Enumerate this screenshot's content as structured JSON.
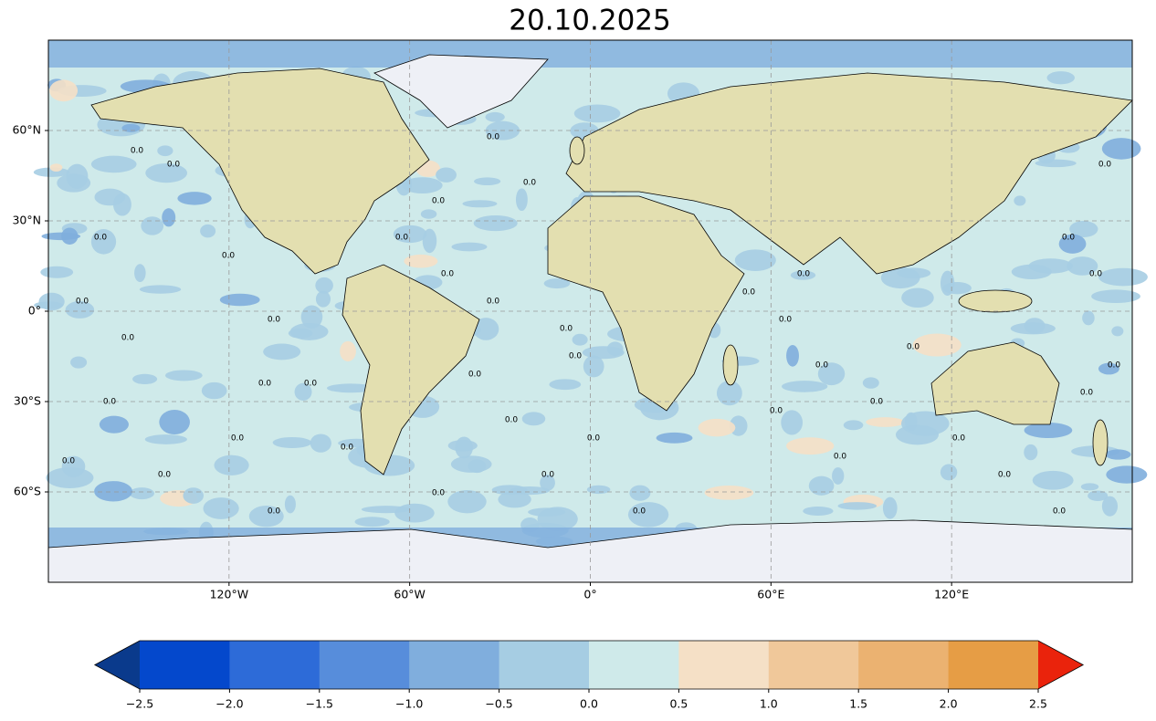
{
  "chart_data": {
    "type": "map",
    "title": "20.10.2025",
    "xlim": [
      -180,
      180
    ],
    "ylim": [
      -90,
      90
    ],
    "xticks": [
      {
        "value": -120,
        "label": "120°W"
      },
      {
        "value": -60,
        "label": "60°W"
      },
      {
        "value": 0,
        "label": "0°"
      },
      {
        "value": 60,
        "label": "60°E"
      },
      {
        "value": 120,
        "label": "120°E"
      }
    ],
    "yticks": [
      {
        "value": 60,
        "label": "60°N"
      },
      {
        "value": 30,
        "label": "30°N"
      },
      {
        "value": 0,
        "label": "0°"
      },
      {
        "value": -30,
        "label": "30°S"
      },
      {
        "value": -60,
        "label": "60°S"
      }
    ],
    "grid": true,
    "contour_label": "0.0",
    "colorbar": {
      "ticks": [
        {
          "value": -2.5,
          "label": "−2.5"
        },
        {
          "value": -2.0,
          "label": "−2.0"
        },
        {
          "value": -1.5,
          "label": "−1.5"
        },
        {
          "value": -1.0,
          "label": "−1.0"
        },
        {
          "value": -0.5,
          "label": "−0.5"
        },
        {
          "value": 0,
          "label": "0.0"
        },
        0.5,
        {
          "value": 1.0,
          "label": "1.0"
        },
        1.5,
        {
          "value": 2.0,
          "label": "2.0"
        },
        2.5
      ],
      "colors": [
        "#0448cc",
        "#2d6bd8",
        "#578ddb",
        "#80aedd",
        "#a6cde3",
        "#cfeaea",
        "#f5e0c6",
        "#f0c89a",
        "#ebb271",
        "#e69d45"
      ],
      "under_color": "#0a3a8c",
      "over_color": "#ea230c"
    }
  }
}
